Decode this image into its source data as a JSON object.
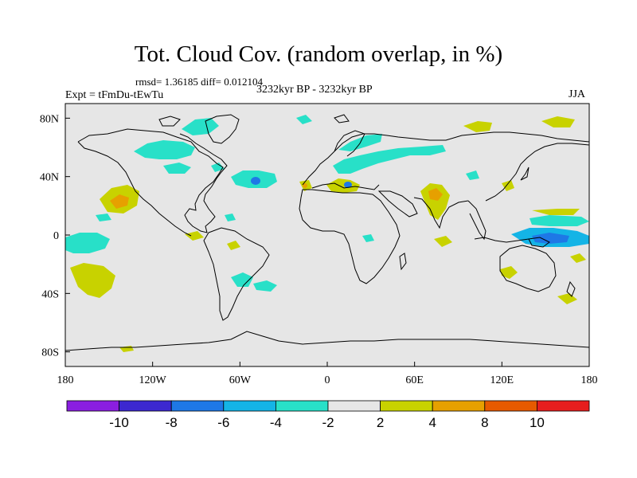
{
  "header": {
    "title": "Tot. Cloud Cov. (random overlap, in %)",
    "stats": "rmsd= 1.36185 diff= 0.012104",
    "experiment": "Expt = tFmDu-tEwTu",
    "period": "3232kyr BP - 3232kyr BP",
    "season": "JJA"
  },
  "map": {
    "background_color": "#e6e6e6",
    "coast_color": "#000000",
    "lon_ticks": [
      "180",
      "120W",
      "60W",
      "0",
      "60E",
      "120E",
      "180"
    ],
    "lat_ticks": [
      "80N",
      "40N",
      "0",
      "40S",
      "80S"
    ]
  },
  "colorbar": {
    "colors": [
      "#8a1ee0",
      "#3c28d0",
      "#1e78e6",
      "#14b4e6",
      "#28e0c8",
      "#e6e6e6",
      "#c8d200",
      "#e6a000",
      "#e65a00",
      "#e61e1e"
    ],
    "labels": [
      "-10",
      "-8",
      "-6",
      "-4",
      "-2",
      "2",
      "4",
      "8",
      "10"
    ]
  },
  "chart_data": {
    "type": "heatmap",
    "title": "Tot. Cloud Cov. (random overlap, in %)",
    "variable": "Total cloud cover difference (%)",
    "levels": [
      -10,
      -8,
      -6,
      -4,
      -2,
      2,
      4,
      8,
      10
    ],
    "lon_range": [
      -180,
      180
    ],
    "lat_range": [
      -90,
      90
    ],
    "anomalies": [
      {
        "lon": 5,
        "lat": 48,
        "value": -3
      },
      {
        "lon": 35,
        "lat": 50,
        "value": -3
      },
      {
        "lon": 50,
        "lat": 60,
        "value": -3
      },
      {
        "lon": -75,
        "lat": 62,
        "value": -3
      },
      {
        "lon": -110,
        "lat": 67,
        "value": -3
      },
      {
        "lon": -45,
        "lat": 39,
        "value": -7
      },
      {
        "lon": -50,
        "lat": 40,
        "value": -3
      },
      {
        "lon": -160,
        "lat": -4,
        "value": -3
      },
      {
        "lon": -40,
        "lat": -30,
        "value": -3
      },
      {
        "lon": -30,
        "lat": -37,
        "value": -3
      },
      {
        "lon": 150,
        "lat": 0,
        "value": -5
      },
      {
        "lon": 150,
        "lat": 0,
        "value": -8
      },
      {
        "lon": 160,
        "lat": 10,
        "value": -3
      },
      {
        "lon": -140,
        "lat": 30,
        "value": 3
      },
      {
        "lon": -140,
        "lat": 28,
        "value": 5
      },
      {
        "lon": -160,
        "lat": -28,
        "value": 3
      },
      {
        "lon": 75,
        "lat": 30,
        "value": 3
      },
      {
        "lon": 75,
        "lat": 30,
        "value": 5
      },
      {
        "lon": -15,
        "lat": 36,
        "value": 3
      },
      {
        "lon": 15,
        "lat": 38,
        "value": 5
      },
      {
        "lon": 100,
        "lat": 75,
        "value": 3
      },
      {
        "lon": 150,
        "lat": 78,
        "value": 3
      },
      {
        "lon": 160,
        "lat": 12,
        "value": 3
      },
      {
        "lon": 125,
        "lat": -25,
        "value": 3
      },
      {
        "lon": -100,
        "lat": 3,
        "value": 3
      },
      {
        "lon": 20,
        "lat": 38,
        "value": -5
      }
    ]
  }
}
